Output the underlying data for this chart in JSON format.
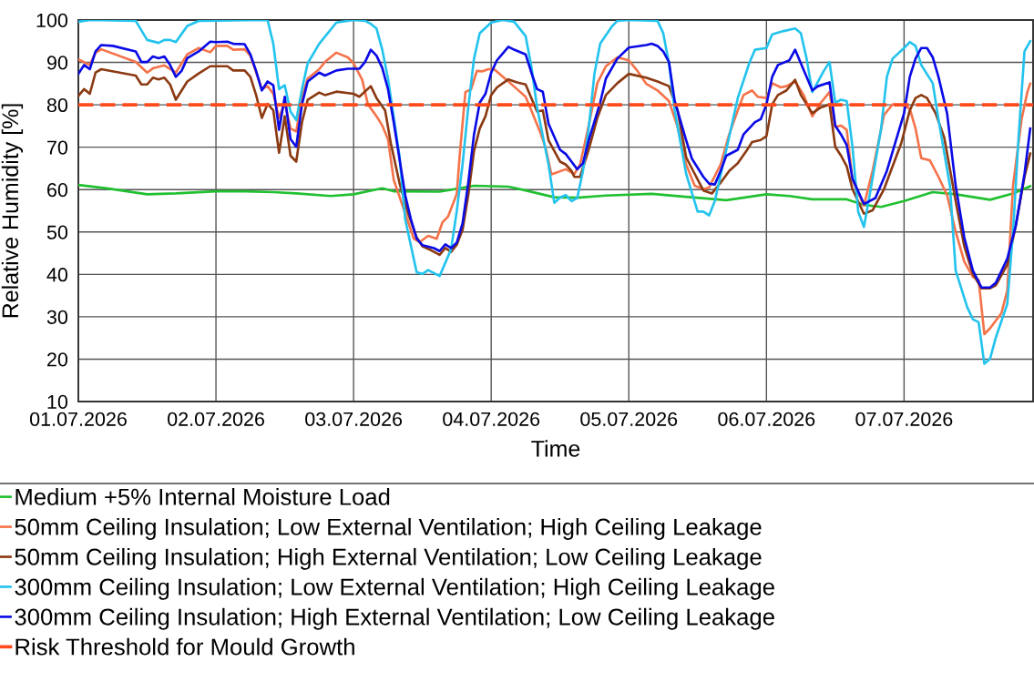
{
  "chart_data": {
    "type": "line",
    "xlabel": "Time",
    "ylabel": "Relative Humidity [%]",
    "xlim": [
      "2026-07-01T00:00",
      "2026-07-07T22:30"
    ],
    "xticks": [
      {
        "value": "2026-07-01",
        "label": "01.07.2026"
      },
      {
        "value": "2026-07-02",
        "label": "02.07.2026"
      },
      {
        "value": "2026-07-03",
        "label": "03.07.2026"
      },
      {
        "value": "2026-07-04",
        "label": "04.07.2026"
      },
      {
        "value": "2026-07-05",
        "label": "05.07.2026"
      },
      {
        "value": "2026-07-06",
        "label": "06.07.2026"
      },
      {
        "value": "2026-07-07",
        "label": "07.07.2026"
      }
    ],
    "ylim": [
      10,
      100
    ],
    "yticks": [
      10,
      20,
      30,
      40,
      50,
      60,
      70,
      80,
      90,
      100
    ],
    "grid": true,
    "legend": "bottom",
    "ref_lines": [
      {
        "axis": "y",
        "value": 80,
        "label": "Risk Threshold for Mould Growth",
        "color": "#ff4a1c",
        "line_style": "dashed"
      }
    ],
    "series": [
      {
        "name": "Medium +5% Internal Moisture Load",
        "color": "#20c030",
        "x": [
          "2026-07-01T00:00",
          "2026-07-01T05:00",
          "2026-07-01T12:00",
          "2026-07-01T17:00",
          "2026-07-02T00:00",
          "2026-07-02T05:00",
          "2026-07-02T10:00",
          "2026-07-02T14:00",
          "2026-07-02T20:00",
          "2026-07-03T00:00",
          "2026-07-03T05:00",
          "2026-07-03T07:00",
          "2026-07-03T15:00",
          "2026-07-03T21:00",
          "2026-07-04T03:00",
          "2026-07-04T06:00",
          "2026-07-04T11:00",
          "2026-07-04T15:00",
          "2026-07-04T20:00",
          "2026-07-05T04:00",
          "2026-07-05T09:00",
          "2026-07-05T17:00",
          "2026-07-06T00:00",
          "2026-07-06T04:00",
          "2026-07-06T08:00",
          "2026-07-06T14:00",
          "2026-07-06T17:00",
          "2026-07-06T20:00",
          "2026-07-07T00:00",
          "2026-07-07T05:00",
          "2026-07-07T09:00",
          "2026-07-07T15:00",
          "2026-07-07T19:00",
          "2026-07-07T22:00"
        ],
        "values": [
          61.1,
          60.3,
          58.9,
          59.1,
          59.6,
          59.6,
          59.4,
          59.1,
          58.5,
          58.9,
          60.3,
          59.6,
          59.5,
          60.9,
          60.7,
          59.8,
          58.2,
          58.1,
          58.6,
          59.0,
          58.4,
          57.5,
          58.9,
          58.5,
          57.7,
          57.7,
          56.4,
          55.9,
          57.3,
          59.4,
          58.9,
          57.6,
          59.1,
          60.8
        ]
      },
      {
        "name": "50mm Ceiling Insulation; Low External Ventilation; High Ceiling Leakage",
        "color": "#f4734a",
        "x": [
          "2026-07-01T00:00",
          "2026-07-01T02:00",
          "2026-07-01T03:00",
          "2026-07-01T04:00",
          "2026-07-01T10:00",
          "2026-07-01T12:00",
          "2026-07-01T13:00",
          "2026-07-01T15:00",
          "2026-07-01T17:00",
          "2026-07-01T19:00",
          "2026-07-01T21:00",
          "2026-07-01T23:00",
          "2026-07-02T00:00",
          "2026-07-02T02:00",
          "2026-07-02T03:00",
          "2026-07-02T05:00",
          "2026-07-02T06:00",
          "2026-07-02T08:00",
          "2026-07-02T09:00",
          "2026-07-02T10:00",
          "2026-07-02T11:00",
          "2026-07-02T12:00",
          "2026-07-02T13:00",
          "2026-07-02T14:00",
          "2026-07-02T15:00",
          "2026-07-02T16:00",
          "2026-07-02T18:00",
          "2026-07-02T19:00",
          "2026-07-02T21:00",
          "2026-07-02T23:00",
          "2026-07-03T00:00",
          "2026-07-03T01:30",
          "2026-07-03T02:30",
          "2026-07-03T04:00",
          "2026-07-03T05:00",
          "2026-07-03T06:00",
          "2026-07-03T07:00",
          "2026-07-03T09:00",
          "2026-07-03T10:30",
          "2026-07-03T11:30",
          "2026-07-03T13:00",
          "2026-07-03T14:30",
          "2026-07-03T15:30",
          "2026-07-03T16:30",
          "2026-07-03T18:00",
          "2026-07-03T18:30",
          "2026-07-03T19:30",
          "2026-07-03T20:30",
          "2026-07-03T21:30",
          "2026-07-03T22:30",
          "2026-07-03T23:30",
          "2026-07-04T00:30",
          "2026-07-04T03:00",
          "2026-07-04T04:30",
          "2026-07-04T06:00",
          "2026-07-04T07:00",
          "2026-07-04T08:30",
          "2026-07-04T09:30",
          "2026-07-04T10:30",
          "2026-07-04T13:00",
          "2026-07-04T14:30",
          "2026-07-04T15:30",
          "2026-07-04T17:00",
          "2026-07-04T18:30",
          "2026-07-04T20:00",
          "2026-07-04T22:00",
          "2026-07-05T00:00",
          "2026-07-05T01:30",
          "2026-07-05T03:00",
          "2026-07-05T05:00",
          "2026-07-05T07:00",
          "2026-07-05T08:30",
          "2026-07-05T10:00",
          "2026-07-05T11:30",
          "2026-07-05T13:00",
          "2026-07-05T14:00",
          "2026-07-05T16:00",
          "2026-07-05T17:30",
          "2026-07-05T19:00",
          "2026-07-05T20:00",
          "2026-07-05T21:30",
          "2026-07-05T22:30",
          "2026-07-06T00:00",
          "2026-07-06T01:00",
          "2026-07-06T02:30",
          "2026-07-06T03:30",
          "2026-07-06T05:00",
          "2026-07-06T06:30",
          "2026-07-06T08:00",
          "2026-07-06T09:30",
          "2026-07-06T11:00",
          "2026-07-06T12:00",
          "2026-07-06T13:00",
          "2026-07-06T14:00",
          "2026-07-06T15:00",
          "2026-07-06T17:00",
          "2026-07-06T18:30",
          "2026-07-06T20:30",
          "2026-07-06T22:00",
          "2026-07-07T00:00",
          "2026-07-07T01:00",
          "2026-07-07T02:00",
          "2026-07-07T03:00",
          "2026-07-07T04:30",
          "2026-07-07T06:00",
          "2026-07-07T07:30",
          "2026-07-07T09:00",
          "2026-07-07T10:30",
          "2026-07-07T12:00",
          "2026-07-07T13:00",
          "2026-07-07T14:00",
          "2026-07-07T15:00",
          "2026-07-07T17:00",
          "2026-07-07T18:00",
          "2026-07-07T19:00",
          "2026-07-07T20:30",
          "2026-07-07T21:30",
          "2026-07-07T22:00"
        ],
        "values": [
          90.7,
          89.4,
          92.3,
          93.1,
          90.1,
          87.6,
          88.6,
          89.3,
          87.6,
          91.9,
          93.4,
          92.4,
          93.9,
          93.9,
          93,
          93.1,
          91.6,
          83.7,
          84.4,
          82.6,
          76.9,
          80.5,
          74.4,
          73.7,
          81.9,
          86.2,
          88.4,
          90.1,
          92.3,
          91.2,
          89.8,
          85.9,
          80.1,
          77.3,
          75.1,
          71.9,
          62.3,
          54.4,
          48.4,
          47.6,
          49.1,
          48.4,
          52.3,
          53.7,
          59,
          68,
          83,
          83.7,
          88,
          87.9,
          88.4,
          88.4,
          85.5,
          83.7,
          81.9,
          78.7,
          73.7,
          69.8,
          63.6,
          64.8,
          63.7,
          65.9,
          75.1,
          85.1,
          89.1,
          91.2,
          90.5,
          88,
          85,
          83.4,
          80.9,
          74.8,
          65.9,
          60.9,
          60.1,
          60.5,
          65.9,
          73,
          78.7,
          82.3,
          83.4,
          81.9,
          81.6,
          85.1,
          84.1,
          84.4,
          85.5,
          82.3,
          77.3,
          80.5,
          83,
          74.8,
          75.1,
          74.1,
          62.3,
          56.2,
          64.4,
          77.6,
          80.1,
          79.8,
          79.1,
          74.4,
          67.4,
          66.9,
          63,
          58.7,
          50.1,
          43,
          39.4,
          38.7,
          25.9,
          27.3,
          30.9,
          36.2,
          60.9,
          76.6,
          83,
          85
        ]
      },
      {
        "name": "50mm Ceiling Insulation; High External Ventilation; Low Ceiling Leakage",
        "color": "#8b3a12",
        "x": [
          "2026-07-01T00:00",
          "2026-07-01T01:00",
          "2026-07-01T02:00",
          "2026-07-01T03:00",
          "2026-07-01T04:00",
          "2026-07-01T10:00",
          "2026-07-01T11:00",
          "2026-07-01T12:00",
          "2026-07-01T13:00",
          "2026-07-01T14:00",
          "2026-07-01T15:00",
          "2026-07-01T16:00",
          "2026-07-01T17:00",
          "2026-07-01T19:00",
          "2026-07-01T21:00",
          "2026-07-01T23:00",
          "2026-07-02T02:00",
          "2026-07-02T03:00",
          "2026-07-02T05:00",
          "2026-07-02T06:00",
          "2026-07-02T07:00",
          "2026-07-02T08:00",
          "2026-07-02T09:00",
          "2026-07-02T10:00",
          "2026-07-02T11:00",
          "2026-07-02T12:00",
          "2026-07-02T13:00",
          "2026-07-02T14:00",
          "2026-07-02T15:00",
          "2026-07-02T16:00",
          "2026-07-02T18:00",
          "2026-07-02T19:00",
          "2026-07-02T21:00",
          "2026-07-03T00:00",
          "2026-07-03T01:00",
          "2026-07-03T03:00",
          "2026-07-03T04:00",
          "2026-07-03T05:30",
          "2026-07-03T06:30",
          "2026-07-03T08:00",
          "2026-07-03T09:30",
          "2026-07-03T11:00",
          "2026-07-03T12:00",
          "2026-07-03T13:30",
          "2026-07-03T15:00",
          "2026-07-03T16:00",
          "2026-07-03T17:00",
          "2026-07-03T18:00",
          "2026-07-03T19:00",
          "2026-07-03T20:00",
          "2026-07-03T21:00",
          "2026-07-03T22:00",
          "2026-07-03T23:00",
          "2026-07-04T00:00",
          "2026-07-04T01:00",
          "2026-07-04T03:00",
          "2026-07-04T04:30",
          "2026-07-04T06:00",
          "2026-07-04T07:00",
          "2026-07-04T08:00",
          "2026-07-04T09:00",
          "2026-07-04T10:00",
          "2026-07-04T12:00",
          "2026-07-04T13:00",
          "2026-07-04T14:00",
          "2026-07-04T14:30",
          "2026-07-04T15:30",
          "2026-07-04T17:00",
          "2026-07-04T18:30",
          "2026-07-04T20:00",
          "2026-07-04T22:00",
          "2026-07-05T00:00",
          "2026-07-05T03:00",
          "2026-07-05T05:00",
          "2026-07-05T07:00",
          "2026-07-05T08:30",
          "2026-07-05T10:00",
          "2026-07-05T11:30",
          "2026-07-05T13:00",
          "2026-07-05T14:30",
          "2026-07-05T16:00",
          "2026-07-05T17:30",
          "2026-07-05T19:00",
          "2026-07-05T20:30",
          "2026-07-05T21:30",
          "2026-07-05T23:00",
          "2026-07-06T00:00",
          "2026-07-06T01:00",
          "2026-07-06T02:00",
          "2026-07-06T03:30",
          "2026-07-06T05:00",
          "2026-07-06T06:00",
          "2026-07-06T08:00",
          "2026-07-06T09:30",
          "2026-07-06T11:00",
          "2026-07-06T12:00",
          "2026-07-06T13:00",
          "2026-07-06T14:00",
          "2026-07-06T15:00",
          "2026-07-06T17:00",
          "2026-07-06T18:30",
          "2026-07-06T20:30",
          "2026-07-06T23:30",
          "2026-07-07T01:00",
          "2026-07-07T02:00",
          "2026-07-07T03:00",
          "2026-07-07T04:00",
          "2026-07-07T05:30",
          "2026-07-07T07:00",
          "2026-07-07T09:00",
          "2026-07-07T10:30",
          "2026-07-07T12:00",
          "2026-07-07T13:30",
          "2026-07-07T15:00",
          "2026-07-07T16:00",
          "2026-07-07T18:00",
          "2026-07-07T19:30",
          "2026-07-07T21:00",
          "2026-07-07T22:00"
        ],
        "values": [
          82.1,
          83.7,
          82.6,
          87.6,
          88.4,
          86.9,
          84.8,
          84.8,
          86.4,
          86,
          86.4,
          84.8,
          81.2,
          85.5,
          87.4,
          89.1,
          89.1,
          88.1,
          88.1,
          86.6,
          82.3,
          76.9,
          80.2,
          78.7,
          68.7,
          77.3,
          68,
          66.6,
          75.9,
          81.2,
          82.9,
          82.3,
          83.1,
          82.6,
          81.9,
          84.4,
          81.6,
          78.7,
          70.9,
          61.6,
          54.4,
          48.7,
          46.6,
          45.7,
          44.6,
          46.2,
          45.3,
          47,
          50.5,
          58.7,
          69.1,
          74.4,
          77.3,
          82.3,
          84.1,
          86,
          85.3,
          84.8,
          81.6,
          78.4,
          78.7,
          71.6,
          66.6,
          65.9,
          64.4,
          63,
          63,
          69.4,
          76.9,
          82.3,
          85.1,
          87.3,
          86.4,
          85.5,
          84.4,
          78.7,
          67.6,
          63.7,
          59.8,
          59.1,
          61.6,
          64.4,
          66.2,
          69.1,
          71.2,
          71.7,
          72.6,
          80.1,
          82.3,
          83.4,
          85.9,
          82.3,
          78,
          79.4,
          80.1,
          70.1,
          68,
          65.5,
          60.1,
          54.3,
          55.1,
          60.1,
          70.9,
          78.7,
          81.6,
          82.3,
          81.6,
          78,
          72.3,
          57.3,
          46.6,
          40.1,
          36.7,
          36.7,
          37.4,
          42.3,
          51.6,
          63,
          68.5
        ]
      },
      {
        "name": "300mm Ceiling Insulation; Low External Ventilation; High Ceiling Leakage",
        "color": "#23c3ee",
        "x": [
          "2026-07-01T00:00",
          "2026-07-01T02:00",
          "2026-07-01T10:00",
          "2026-07-01T12:00",
          "2026-07-01T14:00",
          "2026-07-01T15:00",
          "2026-07-01T16:00",
          "2026-07-01T17:00",
          "2026-07-01T18:00",
          "2026-07-01T19:00",
          "2026-07-01T21:00",
          "2026-07-02T09:00",
          "2026-07-02T10:00",
          "2026-07-02T11:00",
          "2026-07-02T12:00",
          "2026-07-02T13:00",
          "2026-07-02T14:00",
          "2026-07-02T15:00",
          "2026-07-02T16:00",
          "2026-07-02T18:00",
          "2026-07-02T21:00",
          "2026-07-03T00:00",
          "2026-07-03T02:00",
          "2026-07-03T03:00",
          "2026-07-03T04:00",
          "2026-07-03T05:00",
          "2026-07-03T06:00",
          "2026-07-03T08:00",
          "2026-07-03T09:00",
          "2026-07-03T11:00",
          "2026-07-03T12:00",
          "2026-07-03T13:00",
          "2026-07-03T15:00",
          "2026-07-03T17:00",
          "2026-07-03T18:00",
          "2026-07-03T19:00",
          "2026-07-03T20:00",
          "2026-07-03T21:00",
          "2026-07-03T22:00",
          "2026-07-04T00:00",
          "2026-07-04T02:00",
          "2026-07-04T04:00",
          "2026-07-04T06:00",
          "2026-07-04T07:00",
          "2026-07-04T08:00",
          "2026-07-04T10:00",
          "2026-07-04T11:00",
          "2026-07-04T12:00",
          "2026-07-04T13:00",
          "2026-07-04T14:00",
          "2026-07-04T15:00",
          "2026-07-04T16:00",
          "2026-07-04T17:00",
          "2026-07-04T18:00",
          "2026-07-04T19:00",
          "2026-07-04T21:00",
          "2026-07-04T22:00",
          "2026-07-05T00:00",
          "2026-07-05T05:00",
          "2026-07-05T06:00",
          "2026-07-05T07:00",
          "2026-07-05T08:00",
          "2026-07-05T10:00",
          "2026-07-05T12:00",
          "2026-07-05T13:00",
          "2026-07-05T14:00",
          "2026-07-05T15:00",
          "2026-07-05T17:00",
          "2026-07-05T19:00",
          "2026-07-05T21:00",
          "2026-07-05T22:00",
          "2026-07-06T00:00",
          "2026-07-06T01:00",
          "2026-07-06T03:00",
          "2026-07-06T05:00",
          "2026-07-06T06:00",
          "2026-07-06T07:00",
          "2026-07-06T08:00",
          "2026-07-06T10:00",
          "2026-07-06T11:00",
          "2026-07-06T12:00",
          "2026-07-06T13:00",
          "2026-07-06T14:00",
          "2026-07-06T15:00",
          "2026-07-06T16:00",
          "2026-07-06T17:00",
          "2026-07-06T18:00",
          "2026-07-06T20:00",
          "2026-07-06T21:00",
          "2026-07-06T22:00",
          "2026-07-07T00:00",
          "2026-07-07T01:00",
          "2026-07-07T02:00",
          "2026-07-07T03:00",
          "2026-07-07T05:00",
          "2026-07-07T06:00",
          "2026-07-07T08:00",
          "2026-07-07T09:00",
          "2026-07-07T11:00",
          "2026-07-07T12:00",
          "2026-07-07T13:00",
          "2026-07-07T14:00",
          "2026-07-07T15:00",
          "2026-07-07T16:00",
          "2026-07-07T18:00",
          "2026-07-07T19:00",
          "2026-07-07T20:00",
          "2026-07-07T21:00",
          "2026-07-07T22:00"
        ],
        "values": [
          99.6,
          100,
          99.8,
          95.3,
          94.6,
          95.3,
          95.3,
          94.8,
          96.7,
          98.6,
          99.8,
          100,
          94.4,
          83.7,
          84.6,
          78.4,
          76.4,
          83.7,
          89.8,
          94.4,
          99.4,
          100,
          99.8,
          99.1,
          98,
          93,
          86.2,
          68,
          53,
          40.5,
          40.1,
          41,
          39.6,
          45.9,
          55,
          65.9,
          79.4,
          90.9,
          96.9,
          99.4,
          100,
          99.6,
          96.2,
          89.1,
          79.4,
          65.9,
          56.9,
          58.1,
          58.7,
          57.3,
          58,
          64.4,
          74.4,
          87.3,
          94.4,
          98.4,
          99.8,
          100,
          99.8,
          96.9,
          89.8,
          78.7,
          63.7,
          54.8,
          54.8,
          53.9,
          57.3,
          69.4,
          81.6,
          89.8,
          93,
          93.4,
          96.6,
          97.4,
          98,
          96.9,
          90.9,
          83,
          88,
          90.1,
          80.5,
          81.2,
          80.9,
          70.1,
          54.8,
          51.2,
          58.7,
          74.4,
          86.6,
          90.9,
          93.4,
          94.8,
          93.9,
          89.4,
          85.1,
          76.6,
          60.9,
          40.9,
          32.3,
          29.4,
          28.7,
          18.9,
          20.1,
          25.1,
          33,
          50.1,
          73,
          92.6,
          95
        ]
      },
      {
        "name": "300mm Ceiling Insulation; High External Ventilation; Low Ceiling Leakage",
        "color": "#0a0ae6",
        "x": [
          "2026-07-01T00:00",
          "2026-07-01T01:00",
          "2026-07-01T02:00",
          "2026-07-01T03:00",
          "2026-07-01T04:00",
          "2026-07-01T06:00",
          "2026-07-01T10:00",
          "2026-07-01T11:00",
          "2026-07-01T12:00",
          "2026-07-01T13:00",
          "2026-07-01T14:00",
          "2026-07-01T15:00",
          "2026-07-01T16:00",
          "2026-07-01T17:00",
          "2026-07-01T18:00",
          "2026-07-01T19:00",
          "2026-07-01T21:00",
          "2026-07-01T23:00",
          "2026-07-02T00:00",
          "2026-07-02T02:00",
          "2026-07-02T03:00",
          "2026-07-02T05:00",
          "2026-07-02T06:00",
          "2026-07-02T07:00",
          "2026-07-02T08:00",
          "2026-07-02T09:00",
          "2026-07-02T10:00",
          "2026-07-02T11:00",
          "2026-07-02T12:00",
          "2026-07-02T13:00",
          "2026-07-02T14:00",
          "2026-07-02T15:00",
          "2026-07-02T16:00",
          "2026-07-02T18:00",
          "2026-07-02T19:00",
          "2026-07-02T21:00",
          "2026-07-02T23:00",
          "2026-07-03T01:00",
          "2026-07-03T02:00",
          "2026-07-03T03:00",
          "2026-07-03T04:00",
          "2026-07-03T05:00",
          "2026-07-03T06:00",
          "2026-07-03T07:00",
          "2026-07-03T08:00",
          "2026-07-03T09:00",
          "2026-07-03T10:00",
          "2026-07-03T11:00",
          "2026-07-03T12:00",
          "2026-07-03T14:00",
          "2026-07-03T15:00",
          "2026-07-03T16:00",
          "2026-07-03T17:00",
          "2026-07-03T18:00",
          "2026-07-03T19:00",
          "2026-07-03T20:00",
          "2026-07-03T21:00",
          "2026-07-03T22:00",
          "2026-07-03T23:00",
          "2026-07-04T00:00",
          "2026-07-04T01:00",
          "2026-07-04T03:00",
          "2026-07-04T04:00",
          "2026-07-04T06:00",
          "2026-07-04T07:00",
          "2026-07-04T08:00",
          "2026-07-04T09:00",
          "2026-07-04T10:00",
          "2026-07-04T12:00",
          "2026-07-04T13:00",
          "2026-07-04T14:00",
          "2026-07-04T15:00",
          "2026-07-04T16:00",
          "2026-07-04T17:00",
          "2026-07-04T19:00",
          "2026-07-04T20:00",
          "2026-07-04T22:00",
          "2026-07-05T00:00",
          "2026-07-05T03:00",
          "2026-07-05T04:00",
          "2026-07-05T05:00",
          "2026-07-05T06:00",
          "2026-07-05T07:00",
          "2026-07-05T08:00",
          "2026-07-05T10:00",
          "2026-07-05T11:00",
          "2026-07-05T13:00",
          "2026-07-05T14:00",
          "2026-07-05T15:00",
          "2026-07-05T16:00",
          "2026-07-05T17:00",
          "2026-07-05T19:00",
          "2026-07-05T20:00",
          "2026-07-05T22:00",
          "2026-07-05T23:00",
          "2026-07-06T00:00",
          "2026-07-06T01:00",
          "2026-07-06T02:00",
          "2026-07-06T04:00",
          "2026-07-06T05:00",
          "2026-07-06T06:00",
          "2026-07-06T08:00",
          "2026-07-06T09:00",
          "2026-07-06T11:00",
          "2026-07-06T12:00",
          "2026-07-06T13:00",
          "2026-07-06T14:00",
          "2026-07-06T15:00",
          "2026-07-06T17:00",
          "2026-07-06T19:00",
          "2026-07-06T21:00",
          "2026-07-07T00:00",
          "2026-07-07T01:00",
          "2026-07-07T02:00",
          "2026-07-07T03:00",
          "2026-07-07T04:00",
          "2026-07-07T05:00",
          "2026-07-07T06:00",
          "2026-07-07T07:30",
          "2026-07-07T09:00",
          "2026-07-07T10:30",
          "2026-07-07T12:00",
          "2026-07-07T13:30",
          "2026-07-07T15:00",
          "2026-07-07T16:00",
          "2026-07-07T18:00",
          "2026-07-07T19:30",
          "2026-07-07T21:00",
          "2026-07-07T22:00"
        ],
        "values": [
          87.3,
          89.4,
          88.4,
          92.6,
          94.1,
          93.9,
          92.6,
          90.1,
          90.1,
          91.4,
          91,
          91.4,
          89.4,
          86.6,
          88,
          91,
          92.6,
          94.9,
          94.8,
          94.9,
          94.4,
          94.3,
          91.9,
          88,
          83.4,
          85.5,
          84.6,
          74.1,
          81.9,
          71.9,
          70.1,
          80.1,
          85.5,
          87.6,
          86.9,
          88.1,
          88.5,
          88.5,
          90.1,
          93,
          91.6,
          88.7,
          83.7,
          75.9,
          67.3,
          58.7,
          53,
          48.4,
          46.9,
          46.2,
          45.5,
          47.1,
          46.2,
          47.5,
          52,
          61.6,
          73,
          80.5,
          82.6,
          87.6,
          90.5,
          93.7,
          93,
          91.9,
          87.6,
          83.7,
          83.1,
          75.5,
          69.4,
          68.4,
          66.6,
          64.8,
          66.2,
          71.6,
          80.5,
          86.2,
          90.9,
          93.5,
          94.1,
          94.4,
          93.9,
          92.6,
          90.1,
          80.9,
          71.6,
          67.3,
          63,
          61.4,
          61.2,
          64.4,
          68,
          69.4,
          73,
          75.9,
          76.6,
          80.1,
          86.6,
          89.4,
          90.5,
          93,
          89.8,
          83.4,
          84.4,
          85.3,
          75.1,
          73,
          70.5,
          62.6,
          56.6,
          58,
          64.4,
          78,
          86.6,
          90.9,
          93.4,
          93.4,
          91.2,
          86.6,
          78,
          60.9,
          48.7,
          40.9,
          36.9,
          36.9,
          38,
          43.7,
          51.6,
          63.7,
          74.4
        ]
      }
    ]
  }
}
